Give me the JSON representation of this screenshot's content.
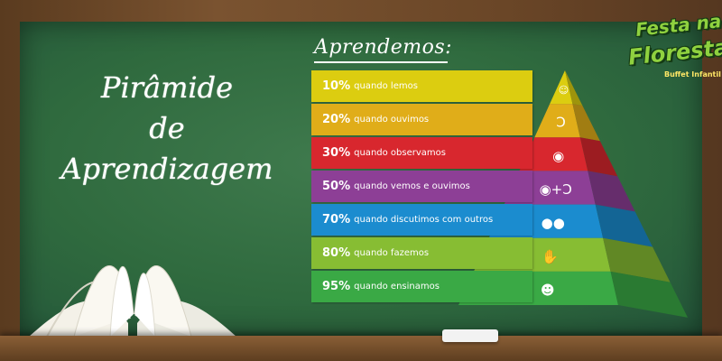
{
  "title": {
    "line1": "Pirâmide",
    "line2": "de",
    "line3": "Aprendizagem"
  },
  "heading": "Aprendemos:",
  "logo": {
    "line1": "Festa na",
    "line2": "Floresta",
    "sub": "Buffet Infantil"
  },
  "levels": [
    {
      "pct": "10%",
      "label": "quando lemos",
      "color": "#dccd10",
      "icon": "reading-person-icon"
    },
    {
      "pct": "20%",
      "label": "quando ouvimos",
      "color": "#e0ad19",
      "icon": "ear-icon"
    },
    {
      "pct": "30%",
      "label": "quando observamos",
      "color": "#d8272e",
      "icon": "eye-icon"
    },
    {
      "pct": "50%",
      "label": "quando vemos e ouvimos",
      "color": "#8d3f96",
      "icon": "eye-plus-ear-icon"
    },
    {
      "pct": "70%",
      "label": "quando discutimos com outros",
      "color": "#1b8ccf",
      "icon": "discussion-icon"
    },
    {
      "pct": "80%",
      "label": "quando fazemos",
      "color": "#87bd33",
      "icon": "hand-icon"
    },
    {
      "pct": "95%",
      "label": "quando ensinamos",
      "color": "#3aa945",
      "icon": "teacher-icon"
    }
  ]
}
